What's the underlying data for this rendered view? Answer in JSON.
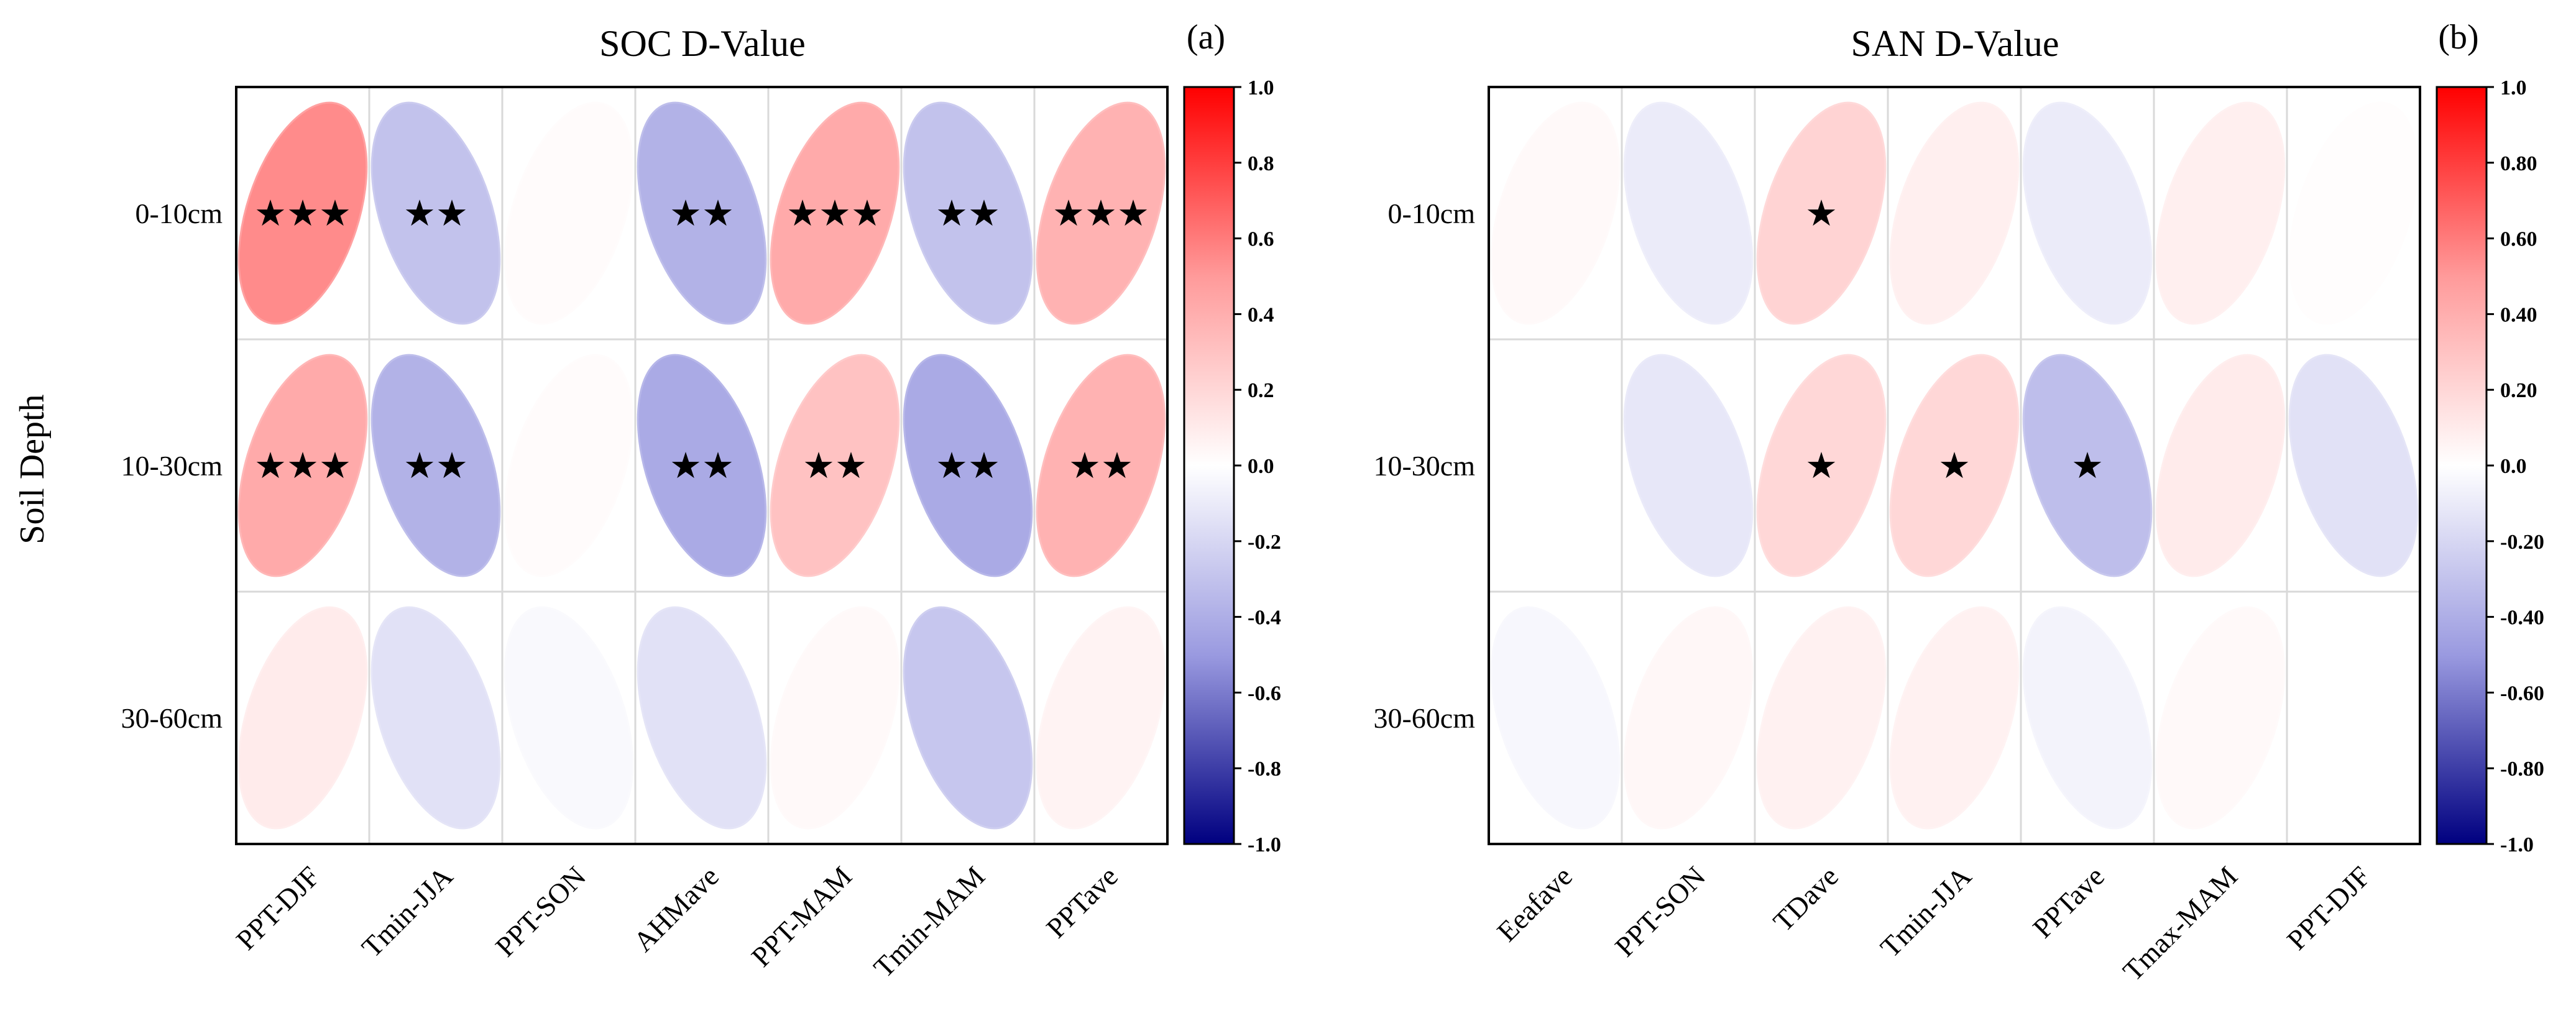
{
  "colors": {
    "positive_max": "#ff0000",
    "zero": "#ffffff",
    "negative_max": "#000080",
    "mid_positive": "#ff9a9a",
    "mid_negative": "#9a9ae0",
    "grid": "#d9d9d9",
    "frame": "#000000",
    "star": "#000000"
  },
  "shared": {
    "ylabel": "Soil Depth",
    "rows": [
      "0-10cm",
      "10-30cm",
      "30-60cm"
    ]
  },
  "chart_data": [
    {
      "type": "heatmap",
      "title": "SOC D-Value",
      "panel_label": "(a)",
      "categories": [
        "PPT-DJF",
        "Tmin-JJA",
        "PPT-SON",
        "AHMave",
        "PPT-MAM",
        "Tmin-MAM",
        "PPTave"
      ],
      "rows": [
        "0-10cm",
        "10-30cm",
        "30-60cm"
      ],
      "values": [
        [
          0.55,
          -0.3,
          0.02,
          -0.38,
          0.42,
          -0.3,
          0.38
        ],
        [
          0.42,
          -0.38,
          0.02,
          -0.42,
          0.3,
          -0.42,
          0.38
        ],
        [
          0.1,
          -0.15,
          -0.03,
          -0.15,
          0.03,
          -0.28,
          0.06
        ]
      ],
      "stars": [
        [
          "★★★",
          "★★",
          "",
          "★★",
          "★★★",
          "★★",
          "★★★"
        ],
        [
          "★★★",
          "★★",
          "",
          "★★",
          "★★",
          "★★",
          "★★"
        ],
        [
          "",
          "",
          "",
          "",
          "",
          "",
          ""
        ]
      ],
      "colorbar": {
        "range": [
          -1,
          1
        ],
        "ticks": [
          "1.0",
          "0.8",
          "0.6",
          "0.4",
          "0.2",
          "0.0",
          "-0.2",
          "-0.4",
          "-0.6",
          "-0.8",
          "-1.0"
        ]
      }
    },
    {
      "type": "heatmap",
      "title": "SAN D-Value",
      "panel_label": "(b)",
      "categories": [
        "Eeafave",
        "PPT-SON",
        "TDave",
        "Tmin-JJA",
        "PPTave",
        "Tmax-MAM",
        "PPT-DJF"
      ],
      "rows": [
        "0-10cm",
        "10-30cm",
        "30-60cm"
      ],
      "values": [
        [
          0.03,
          -0.1,
          0.22,
          0.08,
          -0.1,
          0.08,
          0.01
        ],
        [
          0.0,
          -0.12,
          0.2,
          0.2,
          -0.32,
          0.1,
          -0.15
        ],
        [
          -0.04,
          0.04,
          0.07,
          0.07,
          -0.06,
          0.03,
          0.0
        ]
      ],
      "stars": [
        [
          "",
          "",
          "★",
          "",
          "",
          "",
          ""
        ],
        [
          "",
          "",
          "★",
          "★",
          "★",
          "",
          ""
        ],
        [
          "",
          "",
          "",
          "",
          "",
          "",
          ""
        ]
      ],
      "colorbar": {
        "range": [
          -1,
          1
        ],
        "ticks": [
          "1.0",
          "0.80",
          "0.60",
          "0.40",
          "0.20",
          "0.0",
          "-0.20",
          "-0.40",
          "-0.60",
          "-0.80",
          "-1.0"
        ]
      }
    }
  ]
}
